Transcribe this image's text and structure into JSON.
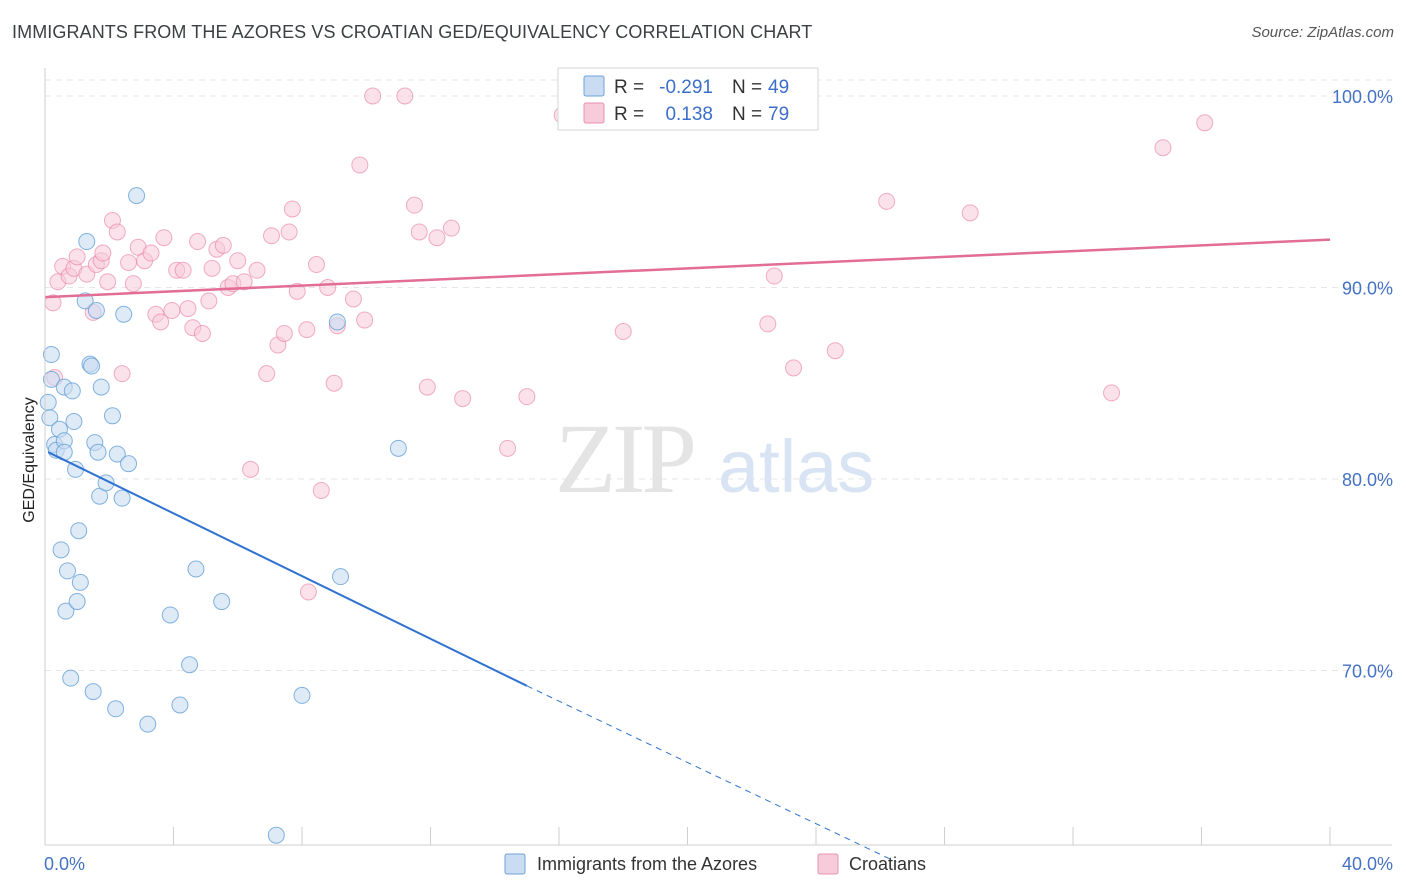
{
  "title": "IMMIGRANTS FROM THE AZORES VS CROATIAN GED/EQUIVALENCY CORRELATION CHART",
  "source": "Source: ZipAtlas.com",
  "watermark": {
    "zip": "ZIP",
    "atlas": "atlas"
  },
  "legend_box": {
    "row1": {
      "r_label": "R =",
      "r_value": "-0.291",
      "n_label": "N =",
      "n_value": "49"
    },
    "row2": {
      "r_label": "R =",
      "r_value": "0.138",
      "n_label": "N =",
      "n_value": "79"
    }
  },
  "chart_data": {
    "type": "scatter",
    "title": "IMMIGRANTS FROM THE AZORES VS CROATIAN GED/EQUIVALENCY CORRELATION CHART",
    "xlabel": "",
    "ylabel": "GED/Equivalency",
    "xlim": [
      0,
      40
    ],
    "ylim": [
      59.5,
      101.5
    ],
    "x_tick_labels": [
      "0.0%",
      "40.0%"
    ],
    "y_ticks": [
      70,
      80,
      90,
      100
    ],
    "y_tick_labels": [
      "70.0%",
      "80.0%",
      "90.0%",
      "100.0%"
    ],
    "grid": true,
    "legend_position": "bottom-center",
    "colors": {
      "azores": "#5b9bd5",
      "azores_fill": "#c9dcf2",
      "croatians": "#e87ba0",
      "croatians_fill": "#f7cbd9",
      "tick_label": "#4472c4",
      "blue_line": "#2f72d0",
      "pink_line": "#e26d96"
    },
    "series": [
      {
        "name": "Immigrants from the Azores",
        "r": -0.291,
        "n": 49,
        "trend": {
          "x0": 0.1,
          "y0": 81.4,
          "x1": 15.0,
          "y1": 69.2,
          "dash_to_x": 26.5,
          "dash_to_y": 60.0
        },
        "points": [
          [
            0.1,
            84.0
          ],
          [
            0.15,
            83.2
          ],
          [
            0.2,
            86.5
          ],
          [
            0.2,
            85.2
          ],
          [
            0.3,
            81.8
          ],
          [
            0.35,
            81.5
          ],
          [
            0.45,
            82.6
          ],
          [
            0.5,
            76.3
          ],
          [
            0.6,
            84.8
          ],
          [
            0.6,
            82.0
          ],
          [
            0.6,
            81.4
          ],
          [
            0.65,
            73.1
          ],
          [
            0.7,
            75.2
          ],
          [
            0.8,
            69.6
          ],
          [
            0.85,
            84.6
          ],
          [
            0.9,
            83.0
          ],
          [
            0.95,
            80.5
          ],
          [
            1.0,
            73.6
          ],
          [
            1.05,
            77.3
          ],
          [
            1.1,
            74.6
          ],
          [
            1.25,
            89.3
          ],
          [
            1.3,
            92.4
          ],
          [
            1.4,
            86.0
          ],
          [
            1.45,
            85.9
          ],
          [
            1.5,
            68.9
          ],
          [
            1.55,
            81.9
          ],
          [
            1.6,
            88.8
          ],
          [
            1.65,
            81.4
          ],
          [
            1.7,
            79.1
          ],
          [
            1.75,
            84.8
          ],
          [
            1.9,
            79.8
          ],
          [
            2.1,
            83.3
          ],
          [
            2.2,
            68.0
          ],
          [
            2.25,
            81.3
          ],
          [
            2.4,
            79.0
          ],
          [
            2.45,
            88.6
          ],
          [
            2.6,
            80.8
          ],
          [
            2.85,
            94.8
          ],
          [
            3.2,
            67.2
          ],
          [
            3.9,
            72.9
          ],
          [
            4.2,
            68.2
          ],
          [
            4.5,
            70.3
          ],
          [
            4.7,
            75.3
          ],
          [
            5.5,
            73.6
          ],
          [
            7.2,
            61.4
          ],
          [
            8.0,
            68.7
          ],
          [
            9.1,
            88.2
          ],
          [
            9.2,
            74.9
          ],
          [
            11.0,
            81.6
          ]
        ]
      },
      {
        "name": "Croatians",
        "r": 0.138,
        "n": 79,
        "trend": {
          "x0": 0.0,
          "y0": 89.5,
          "x1": 40.0,
          "y1": 92.5
        },
        "points": [
          [
            0.25,
            89.2
          ],
          [
            0.3,
            85.3
          ],
          [
            0.4,
            90.3
          ],
          [
            0.55,
            91.1
          ],
          [
            0.75,
            90.6
          ],
          [
            0.9,
            91.0
          ],
          [
            1.0,
            91.6
          ],
          [
            1.3,
            90.7
          ],
          [
            1.5,
            88.7
          ],
          [
            1.6,
            91.2
          ],
          [
            1.75,
            91.4
          ],
          [
            1.8,
            91.8
          ],
          [
            1.95,
            90.3
          ],
          [
            2.1,
            93.5
          ],
          [
            2.25,
            92.9
          ],
          [
            2.4,
            85.5
          ],
          [
            2.6,
            91.3
          ],
          [
            2.75,
            90.2
          ],
          [
            2.9,
            92.1
          ],
          [
            3.1,
            91.4
          ],
          [
            3.3,
            91.8
          ],
          [
            3.45,
            88.6
          ],
          [
            3.6,
            88.2
          ],
          [
            3.7,
            92.6
          ],
          [
            3.95,
            88.8
          ],
          [
            4.1,
            90.9
          ],
          [
            4.3,
            90.9
          ],
          [
            4.45,
            88.9
          ],
          [
            4.6,
            87.9
          ],
          [
            4.75,
            92.4
          ],
          [
            4.9,
            87.6
          ],
          [
            5.1,
            89.3
          ],
          [
            5.2,
            91.0
          ],
          [
            5.35,
            92.0
          ],
          [
            5.55,
            92.2
          ],
          [
            5.7,
            90.0
          ],
          [
            5.85,
            90.2
          ],
          [
            6.0,
            91.4
          ],
          [
            6.2,
            90.3
          ],
          [
            6.4,
            80.5
          ],
          [
            6.6,
            90.9
          ],
          [
            6.9,
            85.5
          ],
          [
            7.05,
            92.7
          ],
          [
            7.25,
            87.0
          ],
          [
            7.45,
            87.6
          ],
          [
            7.6,
            92.9
          ],
          [
            7.7,
            94.1
          ],
          [
            7.85,
            89.8
          ],
          [
            8.15,
            87.8
          ],
          [
            8.2,
            74.1
          ],
          [
            8.45,
            91.2
          ],
          [
            8.6,
            79.4
          ],
          [
            8.8,
            90.0
          ],
          [
            9.0,
            85.0
          ],
          [
            9.1,
            88.0
          ],
          [
            9.6,
            89.4
          ],
          [
            9.8,
            96.4
          ],
          [
            9.95,
            88.3
          ],
          [
            10.2,
            100.0
          ],
          [
            11.2,
            100.0
          ],
          [
            11.5,
            94.3
          ],
          [
            11.65,
            92.9
          ],
          [
            11.9,
            84.8
          ],
          [
            12.2,
            92.6
          ],
          [
            12.65,
            93.1
          ],
          [
            13.0,
            84.2
          ],
          [
            14.4,
            81.6
          ],
          [
            15.0,
            84.3
          ],
          [
            16.1,
            99.0
          ],
          [
            18.0,
            87.7
          ],
          [
            22.5,
            88.1
          ],
          [
            22.7,
            90.6
          ],
          [
            23.3,
            85.8
          ],
          [
            24.6,
            86.7
          ],
          [
            26.2,
            94.5
          ],
          [
            28.8,
            93.9
          ],
          [
            33.2,
            84.5
          ],
          [
            34.8,
            97.3
          ],
          [
            36.1,
            98.6
          ]
        ]
      }
    ]
  }
}
